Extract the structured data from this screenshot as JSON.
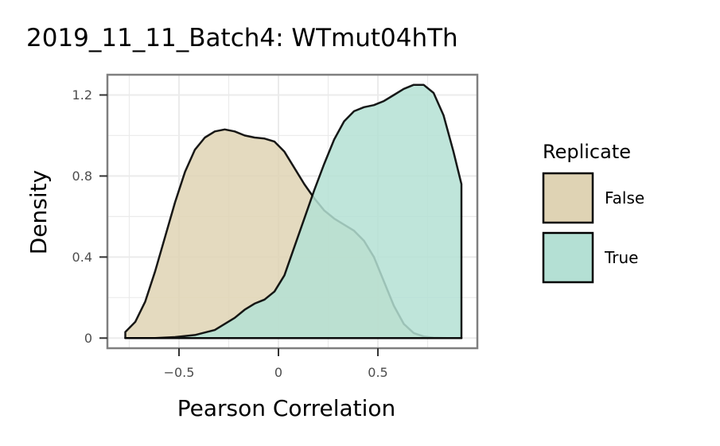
{
  "chart_data": {
    "type": "area",
    "title": "2019_11_11_Batch4: WTmut04hTh",
    "xlabel": "Pearson Correlation",
    "ylabel": "Density",
    "xlim": [
      -0.86,
      1.0
    ],
    "ylim": [
      -0.05,
      1.3
    ],
    "x_ticks": [
      -0.5,
      0,
      0.5
    ],
    "x_tick_labels": [
      "−0.5",
      "0",
      "0.5"
    ],
    "y_ticks": [
      0,
      0.4,
      0.8,
      1.2
    ],
    "y_tick_labels": [
      "0",
      "0.4",
      "0.8",
      "1.2"
    ],
    "grid": true,
    "legend": {
      "title": "Replicate",
      "placement": "right"
    },
    "series": [
      {
        "name": "False",
        "color": "#dfd3b4",
        "points": [
          [
            -0.77,
            0.0
          ],
          [
            -0.77,
            0.03
          ],
          [
            -0.72,
            0.08
          ],
          [
            -0.67,
            0.18
          ],
          [
            -0.62,
            0.33
          ],
          [
            -0.57,
            0.5
          ],
          [
            -0.52,
            0.67
          ],
          [
            -0.47,
            0.82
          ],
          [
            -0.42,
            0.93
          ],
          [
            -0.37,
            0.99
          ],
          [
            -0.32,
            1.02
          ],
          [
            -0.27,
            1.03
          ],
          [
            -0.22,
            1.02
          ],
          [
            -0.17,
            1.0
          ],
          [
            -0.12,
            0.99
          ],
          [
            -0.07,
            0.985
          ],
          [
            -0.02,
            0.97
          ],
          [
            0.03,
            0.92
          ],
          [
            0.08,
            0.84
          ],
          [
            0.13,
            0.76
          ],
          [
            0.18,
            0.69
          ],
          [
            0.23,
            0.63
          ],
          [
            0.28,
            0.59
          ],
          [
            0.33,
            0.56
          ],
          [
            0.38,
            0.53
          ],
          [
            0.43,
            0.48
          ],
          [
            0.48,
            0.4
          ],
          [
            0.53,
            0.28
          ],
          [
            0.58,
            0.16
          ],
          [
            0.63,
            0.07
          ],
          [
            0.68,
            0.025
          ],
          [
            0.73,
            0.008
          ],
          [
            0.78,
            0.002
          ],
          [
            0.85,
            0.0
          ],
          [
            0.92,
            0.0
          ]
        ]
      },
      {
        "name": "True",
        "color": "#b4e0d4",
        "points": [
          [
            -0.77,
            0.0
          ],
          [
            -0.7,
            0.0
          ],
          [
            -0.62,
            0.0
          ],
          [
            -0.52,
            0.005
          ],
          [
            -0.42,
            0.015
          ],
          [
            -0.32,
            0.04
          ],
          [
            -0.22,
            0.1
          ],
          [
            -0.17,
            0.14
          ],
          [
            -0.12,
            0.17
          ],
          [
            -0.07,
            0.19
          ],
          [
            -0.02,
            0.23
          ],
          [
            0.03,
            0.31
          ],
          [
            0.08,
            0.45
          ],
          [
            0.13,
            0.59
          ],
          [
            0.18,
            0.73
          ],
          [
            0.23,
            0.86
          ],
          [
            0.28,
            0.98
          ],
          [
            0.33,
            1.07
          ],
          [
            0.38,
            1.12
          ],
          [
            0.43,
            1.14
          ],
          [
            0.48,
            1.15
          ],
          [
            0.53,
            1.17
          ],
          [
            0.58,
            1.2
          ],
          [
            0.63,
            1.23
          ],
          [
            0.68,
            1.25
          ],
          [
            0.73,
            1.25
          ],
          [
            0.78,
            1.21
          ],
          [
            0.83,
            1.1
          ],
          [
            0.88,
            0.92
          ],
          [
            0.92,
            0.76
          ],
          [
            0.92,
            0.0
          ]
        ]
      }
    ]
  }
}
